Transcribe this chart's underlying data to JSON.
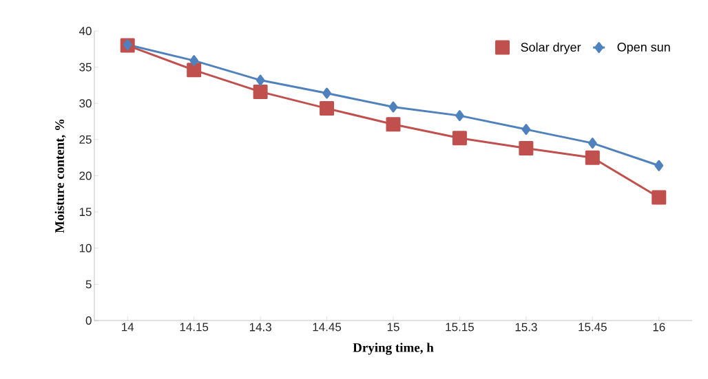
{
  "chart_data": {
    "type": "line",
    "xlabel": "Drying time, h",
    "ylabel": "Moisture content, %",
    "categories": [
      "14",
      "14.15",
      "14.3",
      "14.45",
      "15",
      "15.15",
      "15.3",
      "15.45",
      "16"
    ],
    "series": [
      {
        "name": "Solar dryer",
        "color": "#c0504d",
        "marker": "square",
        "values": [
          38.0,
          34.6,
          31.6,
          29.3,
          27.1,
          25.2,
          23.8,
          22.5,
          17.0
        ]
      },
      {
        "name": "Open sun",
        "color": "#4f81bd",
        "marker": "diamond",
        "values": [
          38.1,
          35.9,
          33.2,
          31.4,
          29.5,
          28.3,
          26.4,
          24.5,
          21.4
        ]
      }
    ],
    "ylim": [
      0,
      40
    ],
    "yticks": [
      0,
      5,
      10,
      15,
      20,
      25,
      30,
      35,
      40
    ],
    "grid": false,
    "legend": "top right",
    "line_style": "solid"
  }
}
